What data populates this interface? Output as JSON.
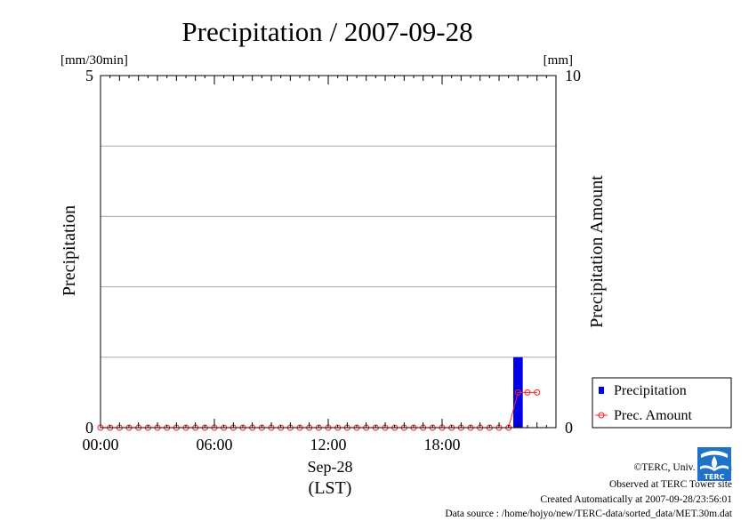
{
  "chart_data": {
    "type": "bar+line",
    "title": "Precipitation / 2007-09-28",
    "left_unit": "[mm/30min]",
    "right_unit": "[mm]",
    "left_ylabel": "Precipitation",
    "right_ylabel": "Precipitation Amount",
    "left_ylim": [
      0,
      5
    ],
    "left_ticks": [
      "5",
      "0"
    ],
    "right_ylim": [
      0,
      10
    ],
    "right_ticks": [
      "10",
      "0"
    ],
    "x_tick_labels": [
      "00:00",
      "06:00",
      "12:00",
      "18:00"
    ],
    "xlabel_date": "Sep-28",
    "xlabel_tz": "(LST)",
    "grid": "horizontal",
    "legend_position": "bottom-right outside",
    "slots_per_day": 48,
    "series": [
      {
        "name": "Precipitation",
        "axis": "left",
        "style": "bar",
        "color": "#0000ee",
        "bars": [
          {
            "slot_start": 43.5,
            "slot_end": 44.5,
            "value": 1.0
          }
        ]
      },
      {
        "name": "Prec. Amount",
        "axis": "right",
        "style": "line-marker",
        "color": "#ff2020",
        "values": [
          0,
          0,
          0,
          0,
          0,
          0,
          0,
          0,
          0,
          0,
          0,
          0,
          0,
          0,
          0,
          0,
          0,
          0,
          0,
          0,
          0,
          0,
          0,
          0,
          0,
          0,
          0,
          0,
          0,
          0,
          0,
          0,
          0,
          0,
          0,
          0,
          0,
          0,
          0,
          0,
          0,
          0,
          0,
          0,
          1.0,
          1.0,
          1.0
        ]
      }
    ]
  },
  "footer": {
    "copyright": "©TERC, Univ. Tsukuba",
    "observed": "Observed at TERC Tower site",
    "created": "Created Automatically at 2007-09-28/23:56:01",
    "source": "Data source : /home/hojyo/new/TERC-data/sorted_data/MET.30m.dat"
  },
  "logo_text": "TERC",
  "colors": {
    "bar": "#0000ee",
    "line": "#ff2020",
    "grid": "#aaaaaa",
    "logo": "#1e73c8"
  }
}
